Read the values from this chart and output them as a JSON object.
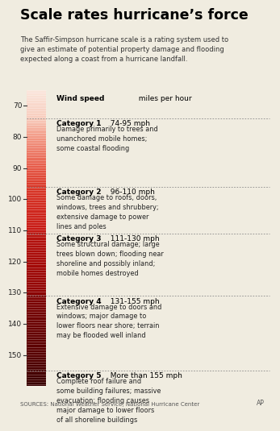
{
  "title": "Scale rates hurricane’s force",
  "subtitle": "The Saffir-Simpson hurricane scale is a rating system used to\ngive an estimate of potential property damage and flooding\nexpected along a coast from a hurricane landfall.",
  "wind_speed_label": "  miles per hour",
  "wind_speed_bold": "Wind speed",
  "bg_color": "#f0ece0",
  "bar_color_stops": [
    [
      65,
      [
        0.98,
        0.9,
        0.86
      ]
    ],
    [
      74,
      [
        0.97,
        0.8,
        0.74
      ]
    ],
    [
      80,
      [
        0.95,
        0.6,
        0.52
      ]
    ],
    [
      90,
      [
        0.9,
        0.35,
        0.28
      ]
    ],
    [
      96,
      [
        0.85,
        0.22,
        0.16
      ]
    ],
    [
      110,
      [
        0.78,
        0.1,
        0.08
      ]
    ],
    [
      111,
      [
        0.72,
        0.08,
        0.06
      ]
    ],
    [
      120,
      [
        0.65,
        0.04,
        0.03
      ]
    ],
    [
      130,
      [
        0.56,
        0.02,
        0.02
      ]
    ],
    [
      131,
      [
        0.5,
        0.01,
        0.01
      ]
    ],
    [
      140,
      [
        0.42,
        0.01,
        0.01
      ]
    ],
    [
      150,
      [
        0.34,
        0.0,
        0.0
      ]
    ],
    [
      155,
      [
        0.28,
        0.0,
        0.0
      ]
    ],
    [
      160,
      [
        0.22,
        0.0,
        0.0
      ]
    ]
  ],
  "tick_values": [
    70,
    80,
    90,
    100,
    110,
    120,
    130,
    140,
    150
  ],
  "cat_boundaries": [
    74,
    96,
    111,
    131,
    155
  ],
  "categories": [
    {
      "name": "Category 1",
      "speed": "74-95 mph",
      "desc": "Damage primarily to trees and\nunanchored mobile homes;\nsome coastal flooding",
      "y_label": 74.5
    },
    {
      "name": "Category 2",
      "speed": "96-110 mph",
      "desc": "Some damage to roofs, doors,\nwindows, trees and shrubbery;\nextensive damage to power\nlines and poles",
      "y_label": 96.5
    },
    {
      "name": "Category 3",
      "speed": "111-130 mph",
      "desc": "Some structural damage; large\ntrees blown down; flooding near\nshoreline and possibly inland;\nmobile homes destroyed",
      "y_label": 111.5
    },
    {
      "name": "Category 4",
      "speed": "131-155 mph",
      "desc": "Extensive damage to doors and\nwindows; major damage to\nlower floors near shore; terrain\nmay be flooded well inland",
      "y_label": 131.5
    },
    {
      "name": "Category 5",
      "speed": "More than 155 mph",
      "desc": "Complete roof failure and\nsome building failures; massive\nevacuation; flooding causes\nmajor damage to lower floors\nof all shoreline buildings",
      "y_label": 155.5
    }
  ],
  "source_text": "SOURCES: National Weather Service; National Hurricane Center",
  "ap_text": "AP",
  "ymin": 65,
  "ymax": 162
}
